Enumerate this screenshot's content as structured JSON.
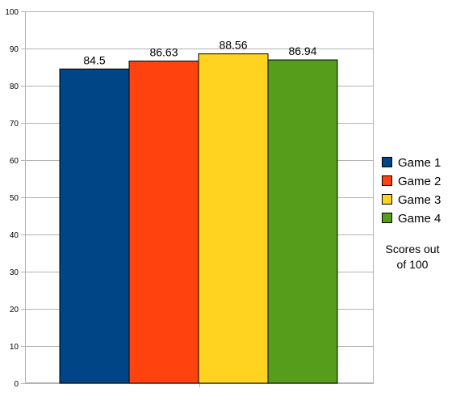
{
  "chart_data": {
    "type": "bar",
    "categories": [
      "Game 1",
      "Game 2",
      "Game 3",
      "Game 4"
    ],
    "values": [
      84.5,
      86.63,
      88.56,
      86.94
    ],
    "data_labels": [
      "84.5",
      "86.63",
      "88.56",
      "86.94"
    ],
    "colors": [
      "#004586",
      "#ff420e",
      "#ffd320",
      "#579d1c"
    ],
    "ylim": [
      0,
      100
    ],
    "yticks": [
      0,
      10,
      20,
      30,
      40,
      50,
      60,
      70,
      80,
      90,
      100
    ],
    "grid": true,
    "legend": {
      "placement": "right",
      "entries": [
        "Game 1",
        "Game 2",
        "Game 3",
        "Game 4"
      ]
    },
    "annotation": [
      "Scores out",
      "of 100"
    ],
    "title": "",
    "xlabel": "",
    "ylabel": ""
  }
}
